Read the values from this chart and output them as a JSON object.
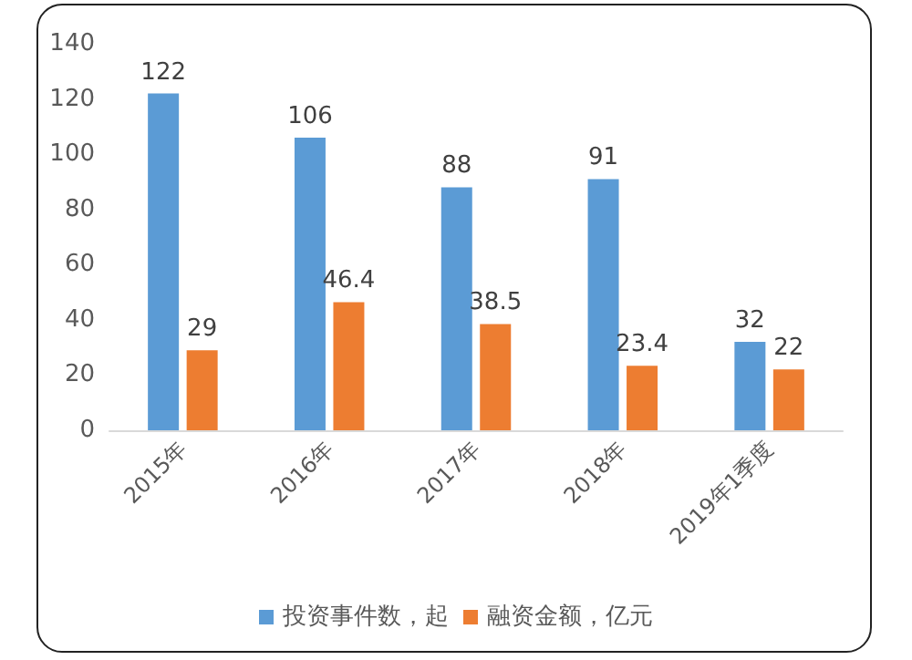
{
  "chart_data": {
    "type": "bar",
    "categories": [
      "2015年",
      "2016年",
      "2017年",
      "2018年",
      "2019年1季度"
    ],
    "series": [
      {
        "name": "投资事件数，起",
        "color": "#5b9bd5",
        "values": [
          122,
          106,
          88,
          91,
          32
        ]
      },
      {
        "name": "融资金额，亿元",
        "color": "#ed7d31",
        "values": [
          29,
          46.4,
          38.5,
          23.4,
          22
        ]
      }
    ],
    "ylim": [
      0,
      140
    ],
    "yticks": [
      0,
      20,
      40,
      60,
      80,
      100,
      120,
      140
    ],
    "data_labels": true,
    "grid": false,
    "legend": "bottom"
  }
}
